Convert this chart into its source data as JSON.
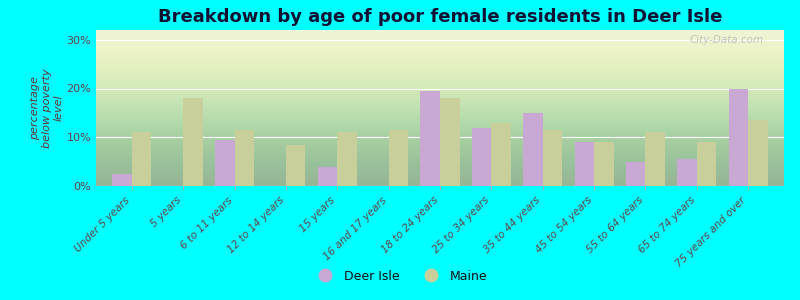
{
  "title": "Breakdown by age of poor female residents in Deer Isle",
  "categories": [
    "Under 5 years",
    "5 years",
    "6 to 11 years",
    "12 to 14 years",
    "15 years",
    "16 and 17 years",
    "18 to 24 years",
    "25 to 34 years",
    "35 to 44 years",
    "45 to 54 years",
    "55 to 64 years",
    "65 to 74 years",
    "75 years and over"
  ],
  "deer_isle_values": [
    2.5,
    0.0,
    9.5,
    0.0,
    4.0,
    0.0,
    19.5,
    12.0,
    15.0,
    9.0,
    5.0,
    5.5,
    20.0
  ],
  "maine_values": [
    11.0,
    18.0,
    11.5,
    8.5,
    11.0,
    11.5,
    18.0,
    13.0,
    11.5,
    9.0,
    11.0,
    9.0,
    13.5
  ],
  "deer_isle_color": "#c9a8d4",
  "maine_color": "#c8cf9a",
  "plot_bg_color": "#e8f0d0",
  "outer_bg_color": "#00ffff",
  "ylabel": "percentage\nbelow poverty\nlevel",
  "ylim": [
    0,
    32
  ],
  "yticks": [
    0,
    10,
    20,
    30
  ],
  "ytick_labels": [
    "0%",
    "10%",
    "20%",
    "30%"
  ],
  "title_color": "#111133",
  "axis_label_color": "#663333",
  "tick_label_color": "#664444",
  "watermark": "City-Data.com",
  "bar_width": 0.38,
  "legend_labels": [
    "Deer Isle",
    "Maine"
  ],
  "legend_text_color": "#111111"
}
